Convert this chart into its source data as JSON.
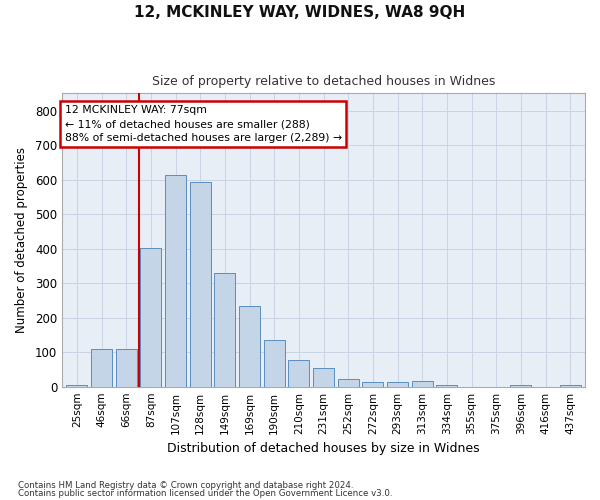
{
  "title1": "12, MCKINLEY WAY, WIDNES, WA8 9QH",
  "title2": "Size of property relative to detached houses in Widnes",
  "xlabel": "Distribution of detached houses by size in Widnes",
  "ylabel": "Number of detached properties",
  "footnote1": "Contains HM Land Registry data © Crown copyright and database right 2024.",
  "footnote2": "Contains public sector information licensed under the Open Government Licence v3.0.",
  "bin_labels": [
    "25sqm",
    "46sqm",
    "66sqm",
    "87sqm",
    "107sqm",
    "128sqm",
    "149sqm",
    "169sqm",
    "190sqm",
    "210sqm",
    "231sqm",
    "252sqm",
    "272sqm",
    "293sqm",
    "313sqm",
    "334sqm",
    "355sqm",
    "375sqm",
    "396sqm",
    "416sqm",
    "437sqm"
  ],
  "bar_heights": [
    5,
    108,
    108,
    403,
    612,
    592,
    330,
    235,
    135,
    78,
    55,
    22,
    15,
    15,
    17,
    5,
    0,
    0,
    5,
    0,
    5
  ],
  "bar_color": "#c5d5e8",
  "bar_edge_color": "#5b8dc0",
  "bar_width": 0.85,
  "vline_x": 2.5,
  "vline_color": "#cc0000",
  "ylim": [
    0,
    850
  ],
  "yticks": [
    0,
    100,
    200,
    300,
    400,
    500,
    600,
    700,
    800
  ],
  "annotation_text": "12 MCKINLEY WAY: 77sqm\n← 11% of detached houses are smaller (288)\n88% of semi-detached houses are larger (2,289) →",
  "annotation_box_color": "#ffffff",
  "annotation_box_edge": "#cc0000",
  "grid_color": "#c8d4e4",
  "bg_color": "#e8eef6"
}
